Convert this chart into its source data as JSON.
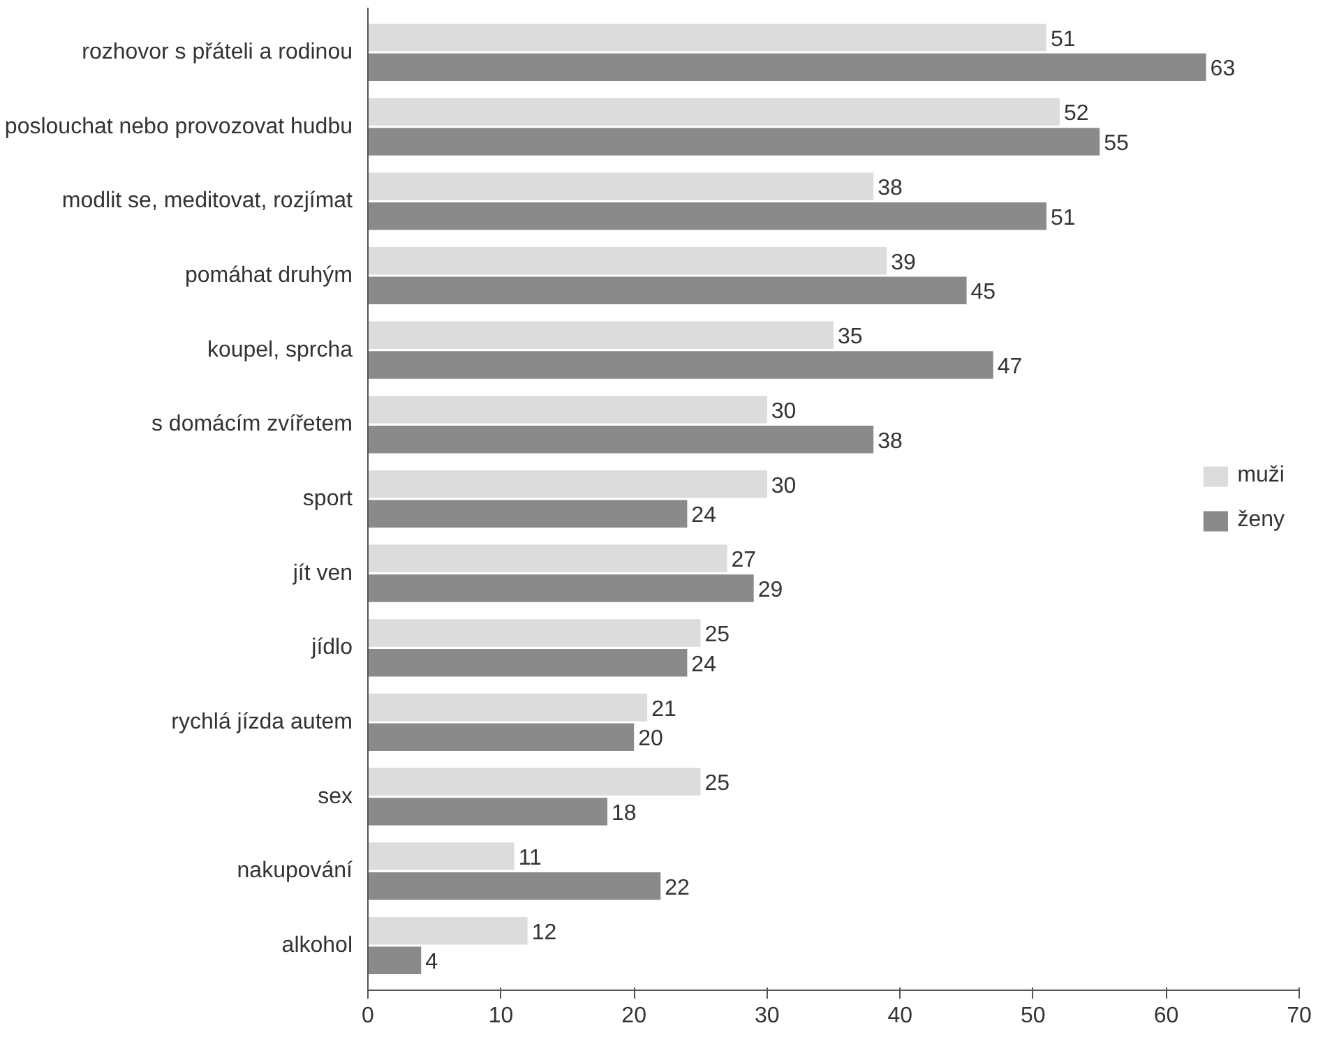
{
  "chart_data": {
    "type": "bar",
    "orientation": "horizontal",
    "categories": [
      "rozhovor s přáteli a rodinou",
      "poslouchat nebo provozovat hudbu",
      "modlit se, meditovat, rozjímat",
      "pomáhat druhým",
      "koupel, sprcha",
      "s domácím zvířetem",
      "sport",
      "jít ven",
      "jídlo",
      "rychlá jízda autem",
      "sex",
      "nakupování",
      "alkohol"
    ],
    "series": [
      {
        "name": "muži",
        "color": "#dcdcdc",
        "values": [
          51,
          52,
          38,
          39,
          35,
          30,
          30,
          27,
          25,
          21,
          25,
          11,
          12
        ]
      },
      {
        "name": "ženy",
        "color": "#8a8a8a",
        "values": [
          63,
          55,
          51,
          45,
          47,
          38,
          24,
          29,
          24,
          20,
          18,
          22,
          4
        ]
      }
    ],
    "xlim": [
      0,
      70
    ],
    "xticks": [
      0,
      10,
      20,
      30,
      40,
      50,
      60,
      70
    ],
    "data_labels": true,
    "legend": "right"
  }
}
